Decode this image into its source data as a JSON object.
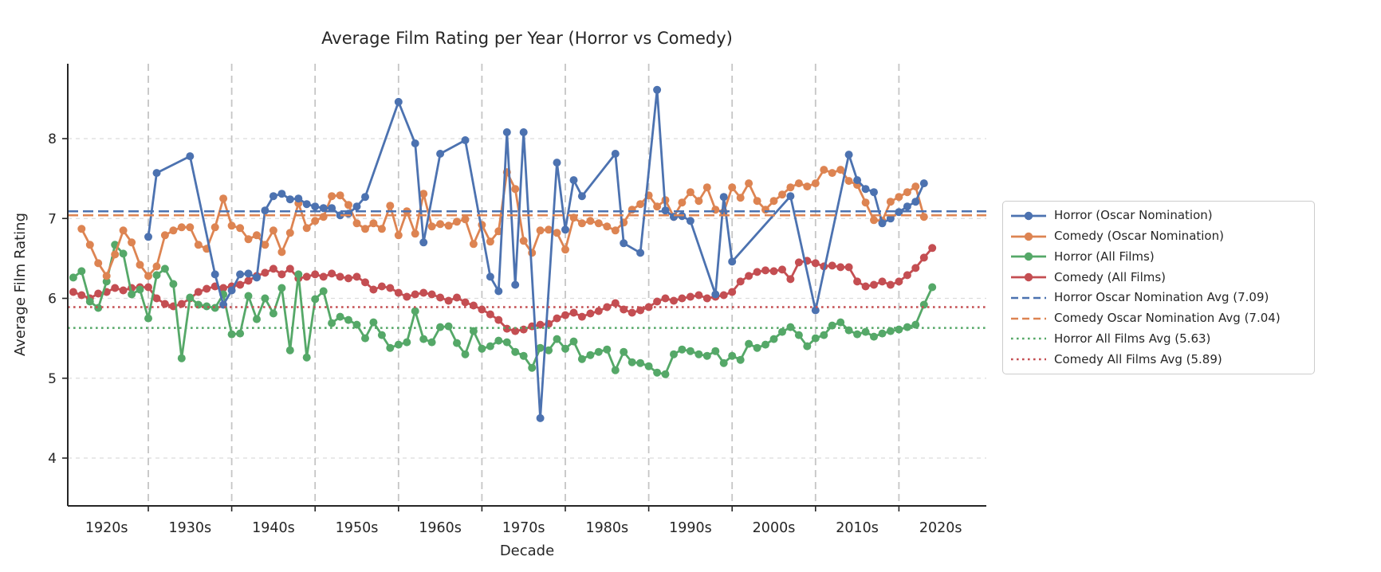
{
  "chart_data": {
    "type": "line",
    "title": "Average Film Rating per Year (Horror vs Comedy)",
    "xlabel": "Decade",
    "ylabel": "Average Film Rating",
    "xlim": [
      1920.3,
      2030.5
    ],
    "ylim": [
      3.4,
      8.94
    ],
    "grid": "on",
    "legend_position": "right-outside",
    "x_tick_labels": [
      "1920s",
      "1930s",
      "1940s",
      "1950s",
      "1960s",
      "1970s",
      "1980s",
      "1990s",
      "2000s",
      "2010s",
      "2020s"
    ],
    "x_tick_years": [
      1925,
      1935,
      1945,
      1955,
      1965,
      1975,
      1985,
      1995,
      2005,
      2015,
      2025
    ],
    "x_gridline_years": [
      1930,
      1940,
      1950,
      1960,
      1970,
      1980,
      1990,
      2000,
      2010,
      2020
    ],
    "y_ticks": [
      4,
      5,
      6,
      7,
      8
    ],
    "colors": {
      "horror_oscar": "#4C72B0",
      "comedy_oscar": "#DD8452",
      "horror_all": "#55A868",
      "comedy_all": "#C44E52",
      "vertical_grid": "#c5c5c5",
      "horizontal_grid": "#dcdcdc",
      "spine": "#262626"
    },
    "series": [
      {
        "id": "comedy_all",
        "label": "Comedy (All Films)",
        "color": "#C44E52",
        "marker": "circle",
        "line_style": "solid",
        "start_year": 1921,
        "values": [
          6.08,
          6.04,
          6.0,
          6.06,
          6.08,
          6.13,
          6.1,
          6.13,
          6.14,
          6.14,
          6.0,
          5.93,
          5.9,
          5.93,
          6.0,
          6.08,
          6.12,
          6.15,
          6.13,
          6.15,
          6.17,
          6.22,
          6.28,
          6.32,
          6.37,
          6.3,
          6.37,
          6.25,
          6.27,
          6.3,
          6.27,
          6.31,
          6.27,
          6.25,
          6.27,
          6.2,
          6.11,
          6.15,
          6.13,
          6.07,
          6.02,
          6.05,
          6.07,
          6.05,
          6.01,
          5.97,
          6.01,
          5.95,
          5.91,
          5.86,
          5.8,
          5.73,
          5.62,
          5.59,
          5.61,
          5.65,
          5.67,
          5.68,
          5.75,
          5.79,
          5.82,
          5.77,
          5.81,
          5.84,
          5.89,
          5.94,
          5.86,
          5.82,
          5.85,
          5.89,
          5.96,
          6.0,
          5.97,
          6.0,
          6.02,
          6.04,
          6.0,
          6.02,
          6.04,
          6.08,
          6.21,
          6.28,
          6.33,
          6.35,
          6.34,
          6.36,
          6.24,
          6.45,
          6.47,
          6.44,
          6.4,
          6.41,
          6.39,
          6.39,
          6.21,
          6.15,
          6.17,
          6.21,
          6.17,
          6.21,
          6.29,
          6.38,
          6.51,
          6.63
        ]
      },
      {
        "id": "horror_all",
        "label": "Horror (All Films)",
        "color": "#55A868",
        "marker": "circle",
        "line_style": "solid",
        "start_year": 1921,
        "values": [
          6.26,
          6.34,
          5.96,
          5.88,
          6.21,
          6.67,
          6.56,
          6.05,
          6.11,
          5.75,
          6.29,
          6.37,
          6.18,
          5.25,
          6.01,
          5.92,
          5.9,
          5.88,
          6.05,
          5.55,
          5.56,
          6.03,
          5.74,
          6.0,
          5.81,
          6.13,
          5.35,
          6.3,
          5.26,
          5.99,
          6.09,
          5.69,
          5.77,
          5.73,
          5.67,
          5.5,
          5.7,
          5.54,
          5.38,
          5.42,
          5.45,
          5.84,
          5.49,
          5.45,
          5.64,
          5.65,
          5.44,
          5.3,
          5.59,
          5.37,
          5.4,
          5.47,
          5.45,
          5.33,
          5.28,
          5.13,
          5.38,
          5.35,
          5.49,
          5.37,
          5.46,
          5.24,
          5.29,
          5.33,
          5.36,
          5.1,
          5.33,
          5.2,
          5.19,
          5.15,
          5.07,
          5.05,
          5.3,
          5.36,
          5.34,
          5.3,
          5.28,
          5.34,
          5.19,
          5.28,
          5.23,
          5.43,
          5.38,
          5.42,
          5.49,
          5.58,
          5.64,
          5.54,
          5.4,
          5.5,
          5.54,
          5.66,
          5.7,
          5.6,
          5.55,
          5.58,
          5.52,
          5.56,
          5.59,
          5.61,
          5.64,
          5.67,
          5.92,
          6.14
        ]
      },
      {
        "id": "comedy_oscar",
        "label": "Comedy (Oscar Nomination)",
        "color": "#DD8452",
        "marker": "circle",
        "line_style": "solid",
        "start_year": 1922,
        "values": [
          6.87,
          6.67,
          6.44,
          6.28,
          6.55,
          6.85,
          6.7,
          6.42,
          6.28,
          6.4,
          6.79,
          6.85,
          6.89,
          6.89,
          6.67,
          6.62,
          6.89,
          7.25,
          6.91,
          6.88,
          6.74,
          6.79,
          6.67,
          6.85,
          6.58,
          6.82,
          7.19,
          6.88,
          6.97,
          7.02,
          7.28,
          7.29,
          7.17,
          6.94,
          6.87,
          6.94,
          6.87,
          7.16,
          6.79,
          7.09,
          6.81,
          7.31,
          6.9,
          6.93,
          6.91,
          6.96,
          6.99,
          6.68,
          6.92,
          6.71,
          6.84,
          7.58,
          7.37,
          6.72,
          6.57,
          6.85,
          6.86,
          6.82,
          6.61,
          7.01,
          6.94,
          6.97,
          6.94,
          6.9,
          6.85,
          6.95,
          7.11,
          7.18,
          7.29,
          7.15,
          7.23,
          7.02,
          7.2,
          7.33,
          7.22,
          7.39,
          7.11,
          7.08,
          7.39,
          7.26,
          7.44,
          7.22,
          7.11,
          7.22,
          7.3,
          7.39,
          7.44,
          7.4,
          7.44,
          7.61,
          7.57,
          7.61,
          7.47,
          7.42,
          7.2,
          6.98,
          6.97,
          7.21,
          7.27,
          7.33,
          7.4,
          7.02
        ]
      },
      {
        "id": "horror_oscar",
        "label": "Horror (Oscar Nomination)",
        "color": "#4C72B0",
        "marker": "circle",
        "line_style": "solid",
        "start_year": 1930,
        "values": [
          6.77,
          7.57,
          null,
          null,
          null,
          7.78,
          null,
          null,
          6.3,
          5.92,
          6.1,
          6.3,
          6.31,
          6.26,
          7.1,
          7.28,
          7.31,
          7.24,
          7.25,
          7.18,
          7.15,
          7.13,
          7.13,
          7.04,
          7.06,
          7.15,
          7.27,
          null,
          null,
          null,
          8.46,
          null,
          7.94,
          6.7,
          null,
          7.81,
          null,
          null,
          7.98,
          null,
          null,
          6.27,
          6.09,
          8.08,
          6.17,
          8.08,
          null,
          4.5,
          null,
          7.7,
          6.86,
          7.48,
          7.28,
          null,
          null,
          null,
          7.81,
          6.69,
          null,
          6.57,
          null,
          8.61,
          7.1,
          7.02,
          7.03,
          6.97,
          null,
          null,
          6.05,
          7.27,
          6.46,
          null,
          null,
          null,
          null,
          null,
          null,
          7.28,
          null,
          null,
          5.85,
          null,
          null,
          null,
          7.8,
          7.48,
          7.37,
          7.33,
          6.94,
          7.0,
          7.08,
          7.15,
          7.21,
          7.44
        ]
      }
    ],
    "avg_lines": [
      {
        "id": "horror_oscar_avg",
        "label": "Horror Oscar Nomination Avg (7.09)",
        "value": 7.09,
        "color": "#4C72B0",
        "style": "dashed"
      },
      {
        "id": "comedy_oscar_avg",
        "label": "Comedy Oscar Nomination Avg (7.04)",
        "value": 7.04,
        "color": "#DD8452",
        "style": "dashed"
      },
      {
        "id": "horror_all_avg",
        "label": "Horror All Films Avg (5.63)",
        "value": 5.63,
        "color": "#55A868",
        "style": "dotted"
      },
      {
        "id": "comedy_all_avg",
        "label": "Comedy All Films Avg (5.89)",
        "value": 5.89,
        "color": "#C44E52",
        "style": "dotted"
      }
    ],
    "legend_order": [
      "Horror (Oscar Nomination)",
      "Comedy (Oscar Nomination)",
      "Horror (All Films)",
      "Comedy (All Films)",
      "Horror Oscar Nomination Avg (7.09)",
      "Comedy Oscar Nomination Avg (7.04)",
      "Horror All Films Avg (5.63)",
      "Comedy All Films Avg (5.89)"
    ]
  }
}
